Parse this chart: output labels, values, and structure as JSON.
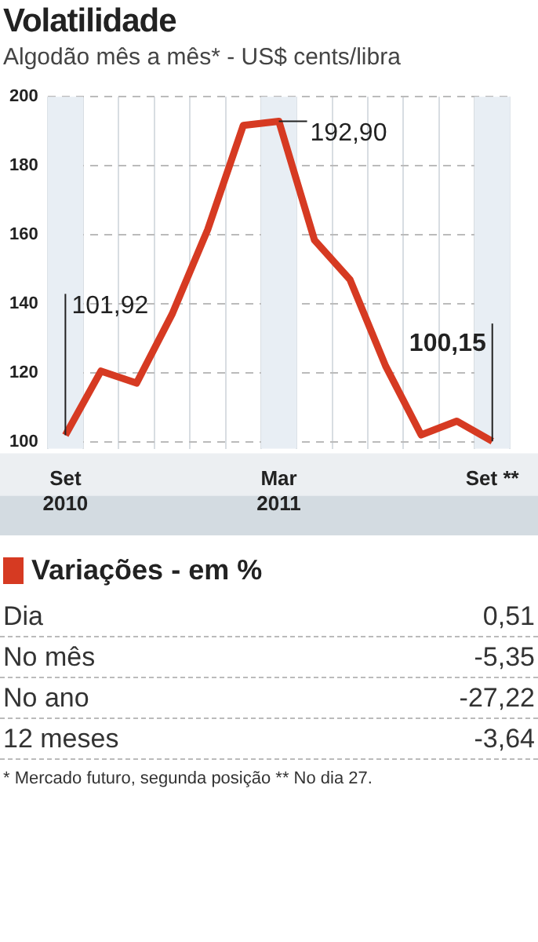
{
  "chart_data": [
    {
      "type": "line",
      "title": "Volatilidade",
      "subtitle": "Algodão mês a mês* - US$ cents/libra",
      "categories": [
        "Set\n2010",
        null,
        null,
        null,
        null,
        null,
        "Mar\n2011",
        null,
        null,
        null,
        null,
        null,
        "Set **"
      ],
      "series": [
        {
          "color": "#d63a22",
          "values": [
            101.92,
            120.5,
            117,
            137,
            161.5,
            191.7,
            192.9,
            158.5,
            147,
            122,
            102,
            106,
            100.15
          ]
        }
      ],
      "ylim": [
        98,
        200
      ],
      "yticks": [
        100,
        120,
        140,
        160,
        180,
        200
      ],
      "grid": true,
      "legend": false,
      "marker": "none",
      "line_style": "solid",
      "bands": [
        {
          "axis": "x",
          "from": "Set\n2010",
          "to": "Set\n2010",
          "color": "#e8eef4"
        },
        {
          "axis": "x",
          "from": "Mar\n2011",
          "to": "Mar\n2011",
          "color": "#e8eef4"
        },
        {
          "axis": "x",
          "from": "Set **",
          "to": "Set **",
          "color": "#e8eef4"
        }
      ],
      "annotations": [
        {
          "text": "101,92",
          "x": "Set\n2010",
          "y": 101.92
        },
        {
          "text": "192,90",
          "x": "Mar\n2011",
          "y": 192.9
        },
        {
          "text": "100,15",
          "x": "Set **",
          "y": 100.15
        }
      ]
    },
    {
      "type": "other",
      "title": "Variações - em %",
      "categories": [
        "Dia",
        "No mês",
        "No ano",
        "12 meses"
      ],
      "value_labels": [
        "0,51",
        "-5,35",
        "-27,22",
        "-3,64"
      ],
      "color": "#d63a22",
      "annotations": [
        "* Mercado futuro, segunda posição ** No dia 27."
      ]
    }
  ]
}
